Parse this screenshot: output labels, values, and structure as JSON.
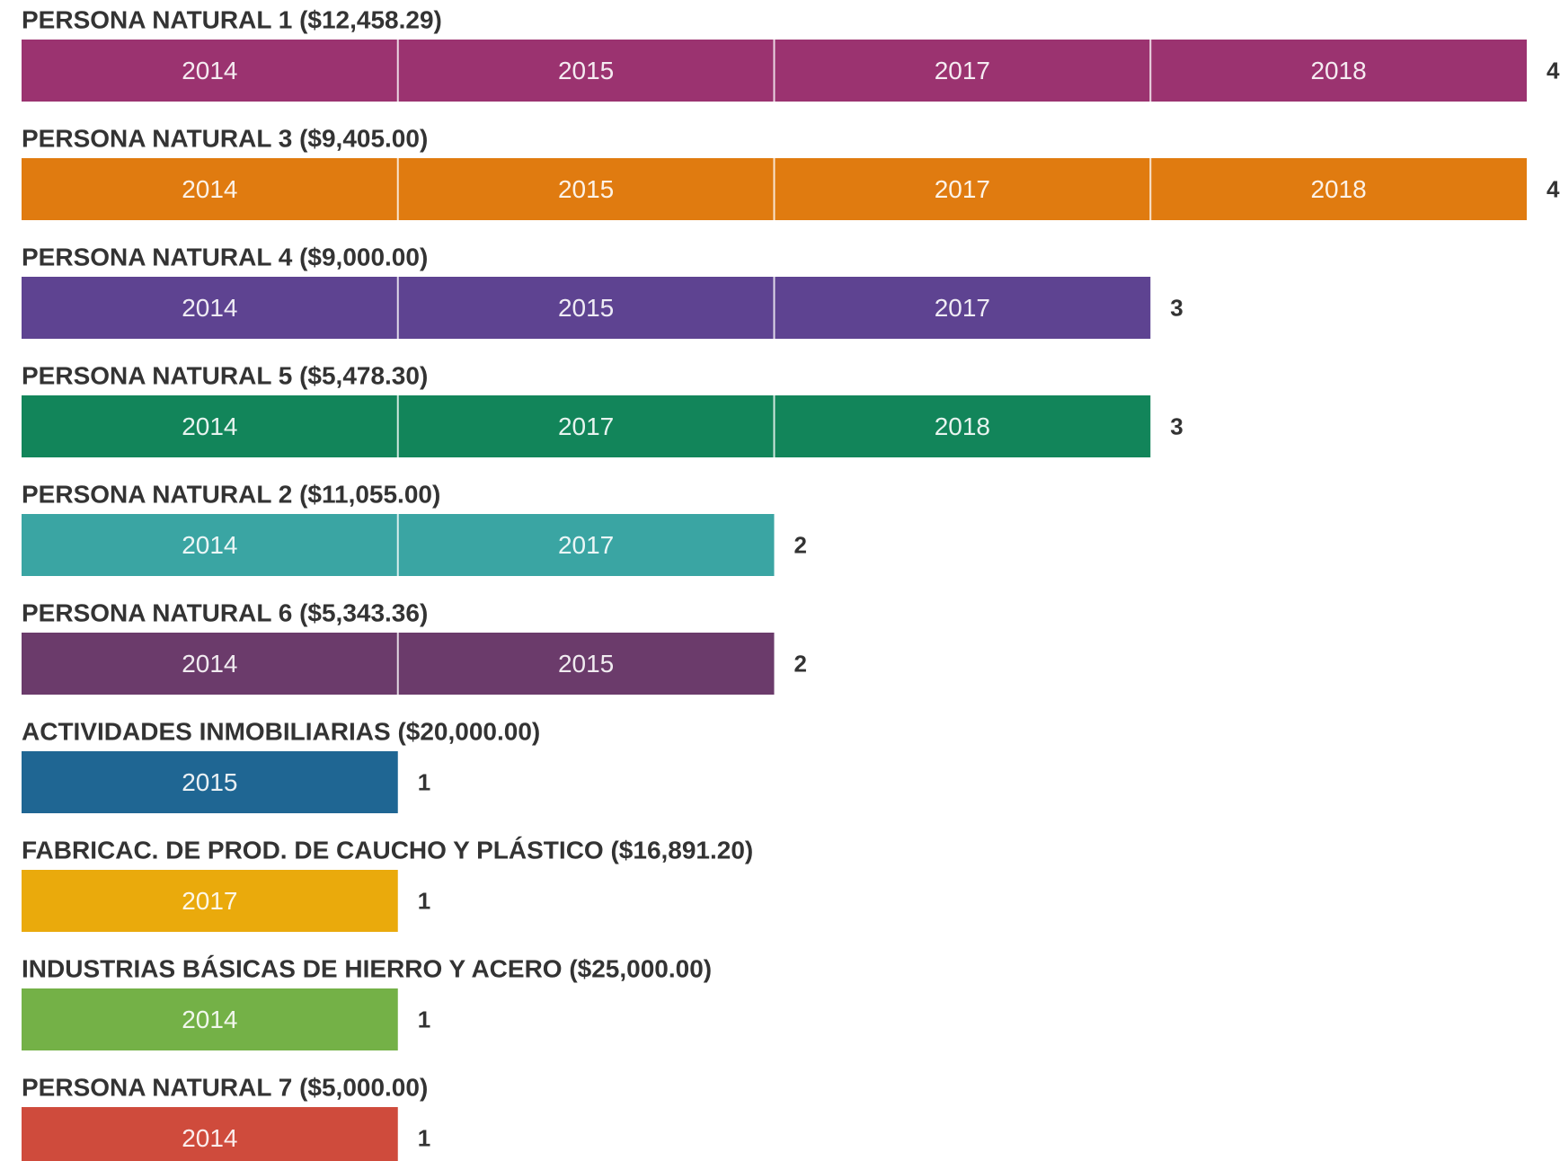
{
  "chart_data": {
    "type": "bar",
    "categories": [
      "PERSONA NATURAL 1 ($12,458.29)",
      "PERSONA NATURAL 3 ($9,405.00)",
      "PERSONA NATURAL 4 ($9,000.00)",
      "PERSONA NATURAL 5 ($5,478.30)",
      "PERSONA NATURAL 2 ($11,055.00)",
      "PERSONA NATURAL 6 ($5,343.36)",
      "ACTIVIDADES INMOBILIARIAS ($20,000.00)",
      "FABRICAC. DE PROD. DE CAUCHO Y PLÁSTICO ($16,891.20)",
      "INDUSTRIAS BÁSICAS DE HIERRO Y ACERO ($25,000.00)",
      "PERSONA NATURAL 7 ($5,000.00)"
    ],
    "values": [
      4,
      4,
      3,
      3,
      2,
      2,
      1,
      1,
      1,
      1
    ],
    "colors": [
      "#9b3370",
      "#e07b10",
      "#5e4391",
      "#12855a",
      "#3aa5a3",
      "#6b3b6b",
      "#1f6693",
      "#eaaa0c",
      "#74b147",
      "#cf4b3c"
    ],
    "segments": [
      [
        "2014",
        "2015",
        "2017",
        "2018"
      ],
      [
        "2014",
        "2015",
        "2017",
        "2018"
      ],
      [
        "2014",
        "2015",
        "2017"
      ],
      [
        "2014",
        "2017",
        "2018"
      ],
      [
        "2014",
        "2017"
      ],
      [
        "2014",
        "2015"
      ],
      [
        "2015"
      ],
      [
        "2017"
      ],
      [
        "2014"
      ],
      [
        "2014"
      ]
    ]
  }
}
